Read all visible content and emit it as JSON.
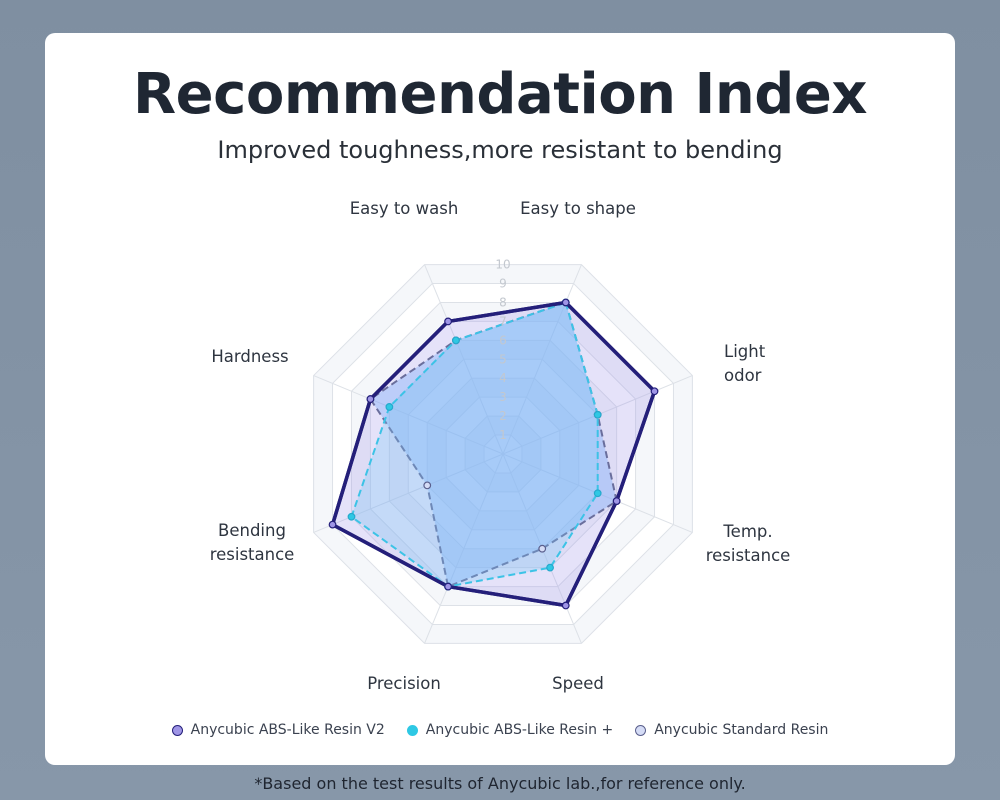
{
  "header": {
    "title": "Recommendation Index",
    "subtitle": "Improved toughness,more resistant to bending"
  },
  "chart_data": {
    "type": "radar",
    "axes": [
      [
        "Easy to shape"
      ],
      [
        "Light",
        "odor"
      ],
      [
        "Temp.",
        "resistance"
      ],
      [
        "Speed"
      ],
      [
        "Precision"
      ],
      [
        "Bending",
        "resistance"
      ],
      [
        "Hardness"
      ],
      [
        "Easy to wash"
      ]
    ],
    "ticks": [
      "1",
      "2",
      "3",
      "4",
      "5",
      "6",
      "7",
      "8",
      "9",
      "10"
    ],
    "range": [
      0,
      10
    ],
    "series": [
      {
        "name": "Anycubic ABS-Like Resin V2",
        "color": "#241f7a",
        "marker": "#9f95e6",
        "values": [
          8,
          8,
          6,
          8,
          7,
          9,
          7,
          7
        ],
        "line": "solid"
      },
      {
        "name": "Anycubic ABS-Like Resin +",
        "color": "#3cc3e6",
        "marker": "#2ec8e4",
        "values": [
          8,
          5,
          5,
          6,
          7,
          8,
          6,
          6
        ],
        "line": "dashed"
      },
      {
        "name": "Anycubic Standard Resin",
        "color": "#6a6e9c",
        "marker": "#d5dcf6",
        "values": [
          8,
          5,
          6,
          5,
          7,
          4,
          7,
          6
        ],
        "line": "dashed"
      }
    ]
  },
  "footnote": "*Based on the test results of Anycubic lab.,for reference only."
}
